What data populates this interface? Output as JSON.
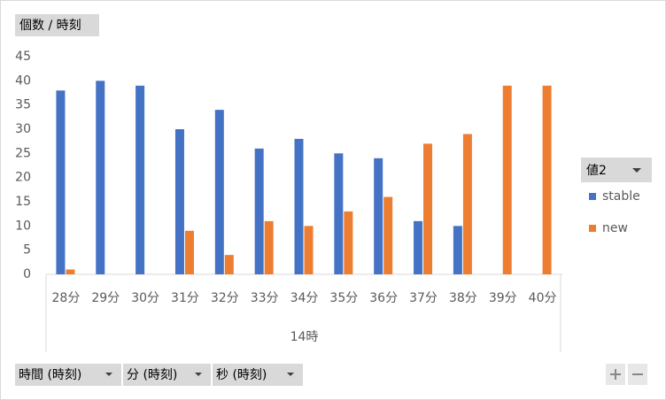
{
  "chart_data": {
    "type": "bar",
    "title": "個数 / 時刻",
    "categories": [
      "28分",
      "29分",
      "30分",
      "31分",
      "32分",
      "33分",
      "34分",
      "35分",
      "36分",
      "37分",
      "38分",
      "39分",
      "40分"
    ],
    "group_label": "14時",
    "series": [
      {
        "name": "stable",
        "color": "#4472c4",
        "values": [
          38,
          40,
          39,
          30,
          34,
          26,
          28,
          25,
          24,
          11,
          10,
          null,
          null
        ]
      },
      {
        "name": "new",
        "color": "#ed7d31",
        "values": [
          1,
          null,
          null,
          9,
          4,
          11,
          10,
          13,
          16,
          27,
          29,
          39,
          39
        ]
      }
    ],
    "ylim": [
      0,
      45
    ],
    "yticks": [
      0,
      5,
      10,
      15,
      20,
      25,
      30,
      35,
      40,
      45
    ],
    "grid": false,
    "legend_title": "値2",
    "legend": "right",
    "axis_fields": [
      "時間 (時刻)",
      "分 (時刻)",
      "秒 (時刻)"
    ]
  }
}
